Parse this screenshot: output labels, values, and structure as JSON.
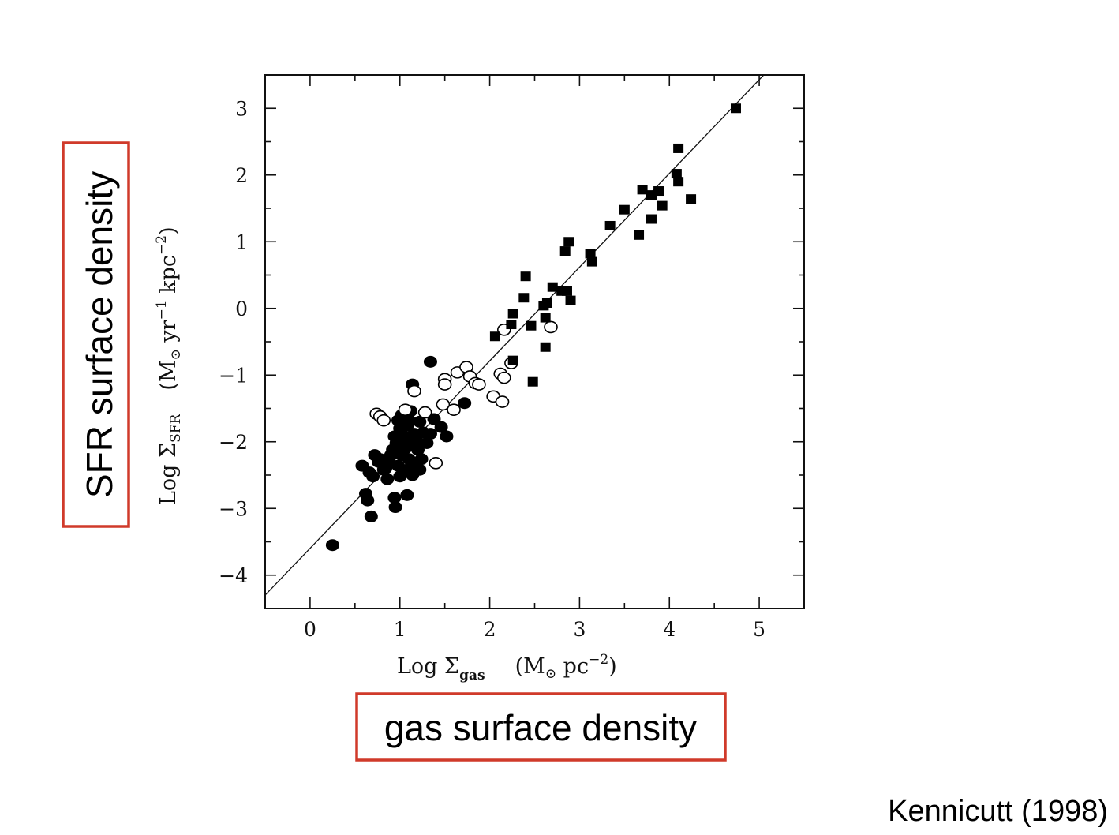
{
  "chart_data": {
    "type": "scatter",
    "xlabel": {
      "prefix": "Log Σ",
      "sub": "gas",
      "units_open": "(M",
      "sun_symbol": "⊙",
      "units_mid": " pc",
      "sup": "−2",
      "units_close": ")"
    },
    "ylabel": {
      "prefix": "Log Σ",
      "sub": "SFR",
      "units_open": "(M",
      "sun_symbol": "⊙",
      "units_mid": " yr",
      "sup1": "−1",
      "units_mid2": " kpc",
      "sup2": "−2",
      "units_close": ")"
    },
    "xlim": [
      -0.5,
      5.5
    ],
    "ylim": [
      -4.5,
      3.5
    ],
    "xticks": [
      0,
      1,
      2,
      3,
      4,
      5
    ],
    "yticks": [
      -4,
      -3,
      -2,
      -1,
      0,
      1,
      2,
      3
    ],
    "xtick_labels": [
      "0",
      "1",
      "2",
      "3",
      "4",
      "5"
    ],
    "ytick_labels": [
      "−4",
      "−3",
      "−2",
      "−1",
      "0",
      "1",
      "2",
      "3"
    ],
    "grid": false,
    "series": [
      {
        "marker": "filled-circle",
        "color": "#000000",
        "points": [
          [
            0.25,
            -3.55
          ],
          [
            0.68,
            -3.12
          ],
          [
            0.62,
            -2.78
          ],
          [
            0.64,
            -2.88
          ],
          [
            0.95,
            -2.98
          ],
          [
            0.94,
            -2.84
          ],
          [
            1.08,
            -2.8
          ],
          [
            0.58,
            -2.36
          ],
          [
            0.66,
            -2.46
          ],
          [
            0.72,
            -2.2
          ],
          [
            0.78,
            -2.26
          ],
          [
            0.82,
            -2.42
          ],
          [
            0.86,
            -2.56
          ],
          [
            0.88,
            -2.32
          ],
          [
            0.92,
            -2.12
          ],
          [
            0.96,
            -2.02
          ],
          [
            0.98,
            -2.36
          ],
          [
            1.0,
            -2.52
          ],
          [
            1.02,
            -2.2
          ],
          [
            1.04,
            -1.92
          ],
          [
            1.06,
            -2.1
          ],
          [
            1.08,
            -2.42
          ],
          [
            1.1,
            -2.26
          ],
          [
            1.12,
            -2.02
          ],
          [
            1.14,
            -2.5
          ],
          [
            1.16,
            -2.32
          ],
          [
            1.18,
            -1.96
          ],
          [
            1.2,
            -2.12
          ],
          [
            1.22,
            -2.42
          ],
          [
            1.24,
            -2.26
          ],
          [
            1.26,
            -1.86
          ],
          [
            1.3,
            -2.02
          ],
          [
            0.94,
            -1.92
          ],
          [
            0.98,
            -1.68
          ],
          [
            1.02,
            -1.6
          ],
          [
            1.08,
            -1.76
          ],
          [
            1.12,
            -1.54
          ],
          [
            1.16,
            -1.88
          ],
          [
            1.22,
            -1.7
          ],
          [
            1.34,
            -1.88
          ],
          [
            1.38,
            -1.66
          ],
          [
            1.46,
            -1.78
          ],
          [
            1.52,
            -1.92
          ],
          [
            1.72,
            -1.42
          ],
          [
            1.14,
            -1.14
          ],
          [
            1.34,
            -0.8
          ],
          [
            1.06,
            -1.98
          ],
          [
            0.9,
            -2.2
          ],
          [
            1.04,
            -2.04
          ],
          [
            0.84,
            -2.4
          ],
          [
            1.0,
            -1.8
          ],
          [
            1.1,
            -1.68
          ],
          [
            0.76,
            -2.3
          ],
          [
            0.7,
            -2.52
          ]
        ]
      },
      {
        "marker": "open-circle",
        "color": "#000000",
        "points": [
          [
            0.74,
            -1.58
          ],
          [
            0.78,
            -1.62
          ],
          [
            0.82,
            -1.68
          ],
          [
            1.06,
            -1.52
          ],
          [
            1.16,
            -1.24
          ],
          [
            1.28,
            -1.56
          ],
          [
            1.4,
            -2.32
          ],
          [
            1.48,
            -1.44
          ],
          [
            1.5,
            -1.06
          ],
          [
            1.5,
            -1.14
          ],
          [
            1.6,
            -1.52
          ],
          [
            1.64,
            -0.96
          ],
          [
            1.74,
            -0.88
          ],
          [
            1.78,
            -1.02
          ],
          [
            1.84,
            -1.12
          ],
          [
            1.88,
            -1.14
          ],
          [
            2.04,
            -1.32
          ],
          [
            2.12,
            -0.98
          ],
          [
            2.14,
            -1.4
          ],
          [
            2.16,
            -1.04
          ],
          [
            2.24,
            -0.82
          ],
          [
            2.16,
            -0.32
          ],
          [
            2.68,
            -0.28
          ]
        ]
      },
      {
        "marker": "filled-square",
        "color": "#000000",
        "points": [
          [
            4.74,
            3.0
          ],
          [
            4.1,
            2.4
          ],
          [
            4.08,
            2.02
          ],
          [
            4.1,
            1.9
          ],
          [
            4.24,
            1.64
          ],
          [
            3.88,
            1.76
          ],
          [
            3.8,
            1.7
          ],
          [
            3.7,
            1.78
          ],
          [
            3.92,
            1.54
          ],
          [
            3.8,
            1.34
          ],
          [
            3.66,
            1.1
          ],
          [
            3.5,
            1.48
          ],
          [
            3.34,
            1.24
          ],
          [
            3.12,
            0.82
          ],
          [
            3.14,
            0.7
          ],
          [
            2.88,
            1.0
          ],
          [
            2.84,
            0.86
          ],
          [
            2.4,
            0.48
          ],
          [
            2.38,
            0.16
          ],
          [
            2.26,
            -0.08
          ],
          [
            2.24,
            -0.24
          ],
          [
            2.46,
            -0.26
          ],
          [
            2.6,
            0.04
          ],
          [
            2.64,
            0.08
          ],
          [
            2.7,
            0.32
          ],
          [
            2.8,
            0.26
          ],
          [
            2.86,
            0.26
          ],
          [
            2.9,
            0.12
          ],
          [
            2.62,
            -0.14
          ],
          [
            2.06,
            -0.42
          ],
          [
            2.26,
            -0.78
          ],
          [
            2.62,
            -0.58
          ],
          [
            2.48,
            -1.1
          ]
        ]
      }
    ],
    "fit_line": {
      "x": [
        -0.5,
        5.05
      ],
      "y": [
        -4.3,
        3.5
      ]
    }
  },
  "annotations": {
    "ylabel_box": "SFR surface density",
    "xlabel_box": "gas surface density",
    "credit": "Kennicutt (1998)",
    "box_color": "#d03a2a"
  }
}
